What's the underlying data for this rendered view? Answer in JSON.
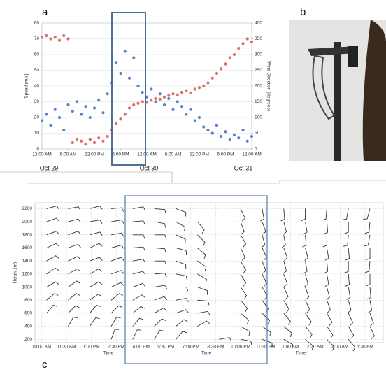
{
  "panel_labels": [
    "a",
    "b",
    "c"
  ],
  "chart_data": [
    {
      "type": "scatter",
      "y_label": "Speed (m/s)",
      "y2_label": "Wind Direction (degrees)",
      "date_labels": [
        "Oct 29",
        "Oct 30",
        "Oct 31"
      ],
      "xlim": [
        0,
        48
      ],
      "xticks": [
        {
          "value": 0,
          "label": "12:00 AM"
        },
        {
          "value": 6,
          "label": "6:00 AM"
        },
        {
          "value": 12,
          "label": "12:00 PM"
        },
        {
          "value": 18,
          "label": "6:00 PM"
        },
        {
          "value": 24,
          "label": "12:00 AM"
        },
        {
          "value": 30,
          "label": "6:00 AM"
        },
        {
          "value": 36,
          "label": "12:00 PM"
        },
        {
          "value": 42,
          "label": "6:00 PM"
        },
        {
          "value": 48,
          "label": "12:00 AM"
        }
      ],
      "ylim": [
        0,
        80
      ],
      "yticks": [
        0,
        10,
        20,
        30,
        40,
        50,
        60,
        70,
        80
      ],
      "y2lim": [
        0,
        400
      ],
      "y2ticks": [
        0,
        50,
        100,
        150,
        200,
        250,
        300,
        350,
        400
      ],
      "grid": true,
      "x": [
        0,
        1,
        2,
        3,
        4,
        5,
        6,
        7,
        8,
        9,
        10,
        11,
        12,
        13,
        14,
        15,
        16,
        17,
        18,
        19,
        20,
        21,
        22,
        23,
        24,
        25,
        26,
        27,
        28,
        29,
        30,
        31,
        32,
        33,
        34,
        35,
        36,
        37,
        38,
        39,
        40,
        41,
        42,
        43,
        44,
        45,
        46,
        47,
        48
      ],
      "series": [
        {
          "color": "#3b6fc6",
          "values": [
            18,
            22,
            15,
            25,
            20,
            12,
            28,
            24,
            30,
            22,
            27,
            20,
            26,
            31,
            23,
            35,
            42,
            55,
            48,
            62,
            45,
            58,
            40,
            36,
            33,
            38,
            30,
            35,
            28,
            32,
            25,
            30,
            27,
            22,
            25,
            18,
            20,
            14,
            12,
            10,
            15,
            8,
            11,
            6,
            9,
            7,
            12,
            5,
            8
          ]
        },
        {
          "color": "#d9534f",
          "axis": "y2",
          "values": [
            355,
            360,
            350,
            355,
            345,
            360,
            350,
            20,
            30,
            25,
            15,
            30,
            20,
            35,
            25,
            40,
            60,
            80,
            95,
            110,
            130,
            140,
            145,
            150,
            148,
            155,
            160,
            158,
            165,
            170,
            175,
            172,
            180,
            185,
            178,
            190,
            195,
            200,
            210,
            225,
            240,
            255,
            270,
            290,
            300,
            320,
            335,
            350,
            340
          ]
        }
      ]
    },
    {
      "type": "barbs",
      "y_label": "Height (m)",
      "x_label": "Time",
      "xlim": [
        -0.4,
        20.6
      ],
      "xticks": [
        {
          "value": 0,
          "label": "10:00 AM"
        },
        {
          "value": 1.5,
          "label": "11:30 AM"
        },
        {
          "value": 3,
          "label": "1:00 PM"
        },
        {
          "value": 4.5,
          "label": "2:30 PM"
        },
        {
          "value": 6,
          "label": "4:00 PM"
        },
        {
          "value": 7.5,
          "label": "5:30 PM"
        },
        {
          "value": 9,
          "label": "7:00 PM"
        },
        {
          "value": 10.5,
          "label": "8:30 PM"
        },
        {
          "value": 12,
          "label": "10:00 PM"
        },
        {
          "value": 13.5,
          "label": "11:30 PM"
        },
        {
          "value": 15,
          "label": "1:00 AM"
        },
        {
          "value": 16.5,
          "label": "2:30 AM"
        },
        {
          "value": 18,
          "label": "4:00 AM"
        },
        {
          "value": 19.5,
          "label": "5:30 AM"
        }
      ],
      "ylim": [
        150,
        2290
      ],
      "yticks": [
        200,
        400,
        600,
        800,
        1000,
        1200,
        1400,
        1600,
        1800,
        2000,
        2200
      ],
      "grid": true,
      "color": "#333333",
      "x": [
        0.3,
        1.6,
        2.9,
        4.2,
        5.5,
        6.8,
        8.1,
        9.4,
        10.7,
        12.0,
        13.3,
        14.6,
        15.9,
        17.2,
        18.5,
        19.8
      ],
      "heights": [
        200,
        400,
        600,
        800,
        1000,
        1200,
        1400,
        1600,
        1800,
        2000,
        2200
      ],
      "values": [
        [
          null,
          null,
          40,
          50,
          60,
          55,
          60,
          65,
          70,
          70,
          75
        ],
        [
          null,
          30,
          45,
          50,
          55,
          60,
          65,
          70,
          70,
          75,
          80
        ],
        [
          null,
          35,
          40,
          55,
          60,
          60,
          70,
          65,
          75,
          80,
          75
        ],
        [
          20,
          30,
          45,
          50,
          65,
          70,
          70,
          75,
          80,
          80,
          85
        ],
        [
          25,
          40,
          50,
          60,
          70,
          75,
          80,
          85,
          90,
          85,
          80
        ],
        [
          30,
          45,
          60,
          70,
          80,
          85,
          90,
          95,
          90,
          100,
          95
        ],
        [
          40,
          50,
          70,
          80,
          90,
          100,
          110,
          105,
          115,
          120,
          110
        ],
        [
          null,
          60,
          80,
          95,
          110,
          120,
          125,
          130,
          135,
          140,
          null
        ],
        [
          80,
          null,
          null,
          null,
          null,
          null,
          null,
          null,
          null,
          null,
          null
        ],
        [
          100,
          120,
          130,
          140,
          145,
          150,
          150,
          155,
          150,
          160,
          155
        ],
        [
          110,
          125,
          135,
          145,
          150,
          155,
          160,
          155,
          165,
          160,
          170
        ],
        [
          120,
          130,
          140,
          150,
          155,
          160,
          165,
          160,
          170,
          165,
          175
        ],
        [
          130,
          140,
          145,
          155,
          160,
          165,
          170,
          165,
          175,
          170,
          180
        ],
        [
          135,
          145,
          150,
          160,
          165,
          170,
          175,
          170,
          180,
          175,
          185
        ],
        [
          140,
          150,
          155,
          165,
          170,
          175,
          180,
          175,
          185,
          180,
          190
        ],
        [
          null,
          155,
          160,
          170,
          175,
          180,
          185,
          180,
          190,
          185,
          195
        ]
      ]
    }
  ]
}
